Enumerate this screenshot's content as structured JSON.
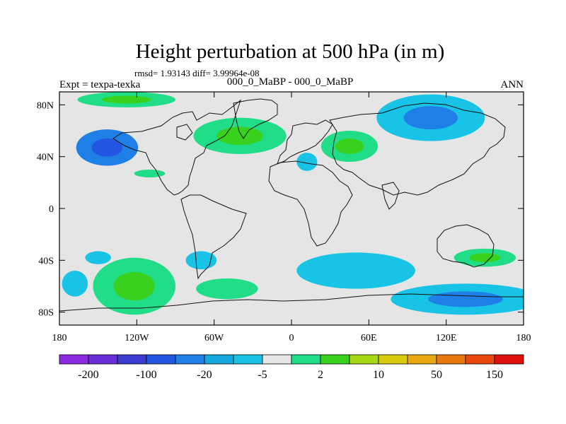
{
  "chart_data": {
    "type": "heatmap",
    "title": "Height perturbation at 500 hPa (in m)",
    "stats_text": "rmsd= 1.93143 diff= 3.99964e-08",
    "left_label": "Expt = texpa-texka",
    "center_label": "000_0_MaBP - 000_0_MaBP",
    "right_label": "ANN",
    "xlim": [
      -180,
      180
    ],
    "ylim": [
      -90,
      90
    ],
    "x_ticks": [
      {
        "value": -180,
        "label": "180"
      },
      {
        "value": -120,
        "label": "120W"
      },
      {
        "value": -60,
        "label": "60W"
      },
      {
        "value": 0,
        "label": "0"
      },
      {
        "value": 60,
        "label": "60E"
      },
      {
        "value": 120,
        "label": "120E"
      },
      {
        "value": 180,
        "label": "180"
      }
    ],
    "y_ticks": [
      {
        "value": 80,
        "label": "80N"
      },
      {
        "value": 40,
        "label": "40N"
      },
      {
        "value": 0,
        "label": "0"
      },
      {
        "value": -40,
        "label": "40S"
      },
      {
        "value": -80,
        "label": "80S"
      }
    ],
    "colorbar": {
      "colors": [
        "#8a2be2",
        "#6a2ed8",
        "#3a3ccf",
        "#2356e0",
        "#1e7fe6",
        "#16a8dc",
        "#19c3e6",
        "#e5e5e5",
        "#22dd88",
        "#39d11d",
        "#a6d815",
        "#d9cc10",
        "#e8a80f",
        "#e8780d",
        "#e8480c",
        "#e01010"
      ],
      "labels": [
        {
          "after_index": 0,
          "text": "-200"
        },
        {
          "after_index": 2,
          "text": "-100"
        },
        {
          "after_index": 4,
          "text": "-20"
        },
        {
          "after_index": 6,
          "text": "-5"
        },
        {
          "after_index": 8,
          "text": "2"
        },
        {
          "after_index": 10,
          "text": "10"
        },
        {
          "after_index": 12,
          "text": "50"
        },
        {
          "after_index": 14,
          "text": "150"
        }
      ]
    },
    "anomalies": [
      {
        "lon": -143,
        "lat": 47,
        "rlon": 24,
        "rlat": 14,
        "level": "neg_mid",
        "inner_level": "neg_strong"
      },
      {
        "lon": -128,
        "lat": 84,
        "rlon": 38,
        "rlat": 6,
        "level": "pos_light",
        "inner_level": "pos_mid"
      },
      {
        "lon": -40,
        "lat": 56,
        "rlon": 36,
        "rlat": 14,
        "level": "pos_light",
        "inner_level": "pos_mid"
      },
      {
        "lon": -110,
        "lat": 27,
        "rlon": 12,
        "rlat": 3,
        "level": "pos_light"
      },
      {
        "lon": 45,
        "lat": 48,
        "rlon": 22,
        "rlat": 12,
        "level": "pos_light",
        "inner_level": "pos_mid"
      },
      {
        "lon": 12,
        "lat": 36,
        "rlon": 8,
        "rlat": 7,
        "level": "neg_light"
      },
      {
        "lon": 108,
        "lat": 70,
        "rlon": 42,
        "rlat": 18,
        "level": "neg_light",
        "inner_level": "neg_mid"
      },
      {
        "lon": -122,
        "lat": -60,
        "rlon": 32,
        "rlat": 22,
        "level": "pos_light",
        "inner_level": "pos_mid"
      },
      {
        "lon": -168,
        "lat": -58,
        "rlon": 10,
        "rlat": 10,
        "level": "neg_light"
      },
      {
        "lon": -150,
        "lat": -38,
        "rlon": 10,
        "rlat": 5,
        "level": "neg_light"
      },
      {
        "lon": -50,
        "lat": -62,
        "rlon": 24,
        "rlat": 8,
        "level": "pos_light"
      },
      {
        "lon": -70,
        "lat": -40,
        "rlon": 12,
        "rlat": 7,
        "level": "neg_light"
      },
      {
        "lon": 50,
        "lat": -48,
        "rlon": 46,
        "rlat": 14,
        "level": "neg_light"
      },
      {
        "lon": 135,
        "lat": -70,
        "rlon": 58,
        "rlat": 12,
        "level": "neg_light",
        "inner_level": "neg_mid"
      },
      {
        "lon": 150,
        "lat": -38,
        "rlon": 24,
        "rlat": 7,
        "level": "pos_light",
        "inner_level": "pos_mid"
      }
    ],
    "level_colors": {
      "neg_strong": "#2356e0",
      "neg_mid": "#1e7fe6",
      "neg_light": "#19c3e6",
      "pos_light": "#22dd88",
      "pos_mid": "#39d11d"
    }
  }
}
